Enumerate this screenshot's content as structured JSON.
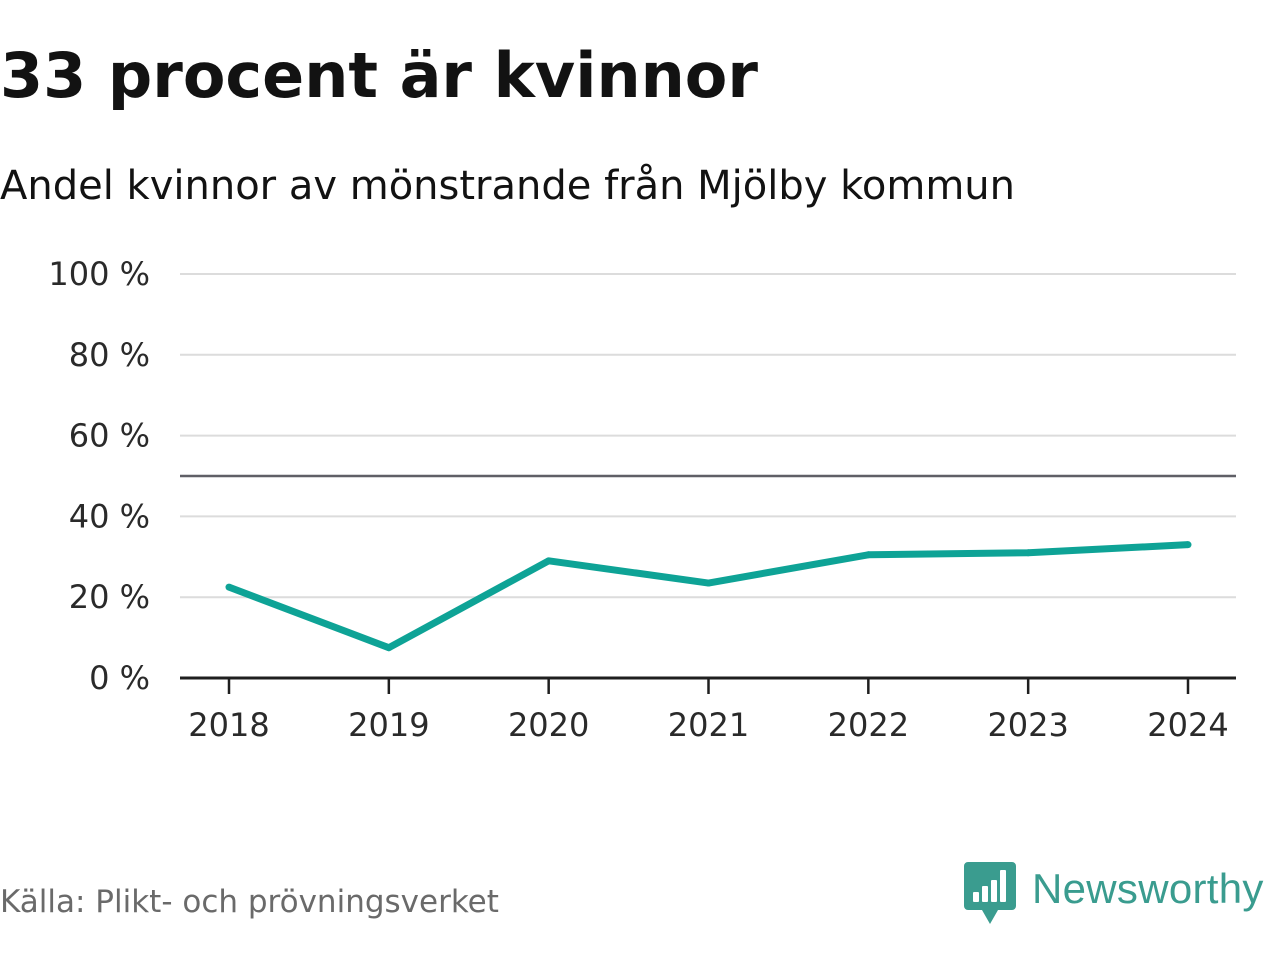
{
  "header": {
    "title": "33 procent är kvinnor",
    "subtitle": "Andel kvinnor av mönstrande från Mjölby kommun"
  },
  "footer": {
    "source": "Källa: Plikt- och prövningsverket",
    "brand_name": "Newsworthy",
    "brand_icon": "newsworthy-logo-icon"
  },
  "colors": {
    "line": "#0ea396",
    "reference_line": "#5f5f66",
    "grid": "#dcdcdc",
    "axis": "#1f1f1f",
    "brand": "#3a9c8f"
  },
  "chart_data": {
    "type": "line",
    "title": "",
    "xlabel": "",
    "ylabel": "",
    "x": [
      "2018",
      "2019",
      "2020",
      "2021",
      "2022",
      "2023",
      "2024"
    ],
    "series": [
      {
        "values": [
          22.5,
          7.5,
          29,
          23.5,
          30.5,
          31,
          33
        ]
      }
    ],
    "ylim": [
      0,
      100
    ],
    "yticks": [
      0,
      20,
      40,
      60,
      80,
      100
    ],
    "ytick_labels": [
      "0 %",
      "20 %",
      "40 %",
      "60 %",
      "80 %",
      "100 %"
    ],
    "reference_line": 50,
    "grid": true,
    "legend": "none"
  }
}
